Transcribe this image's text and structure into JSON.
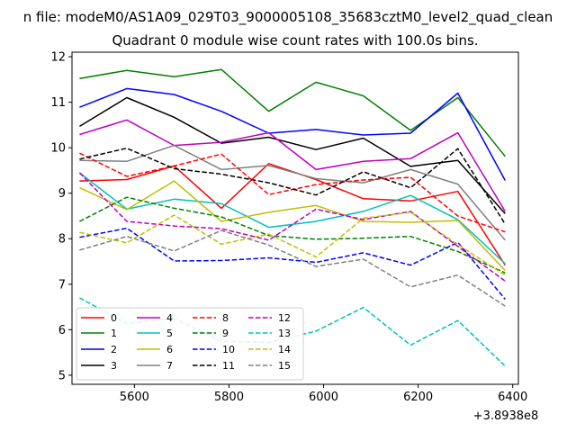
{
  "figure": {
    "suptitle": "n file: modeM0/AS1A09_029T03_9000005108_35683cztM0_level2_quad_clean",
    "title": "Quadrant 0 module wise count rates with 100.0s bins.",
    "x_offset_label": "+3.8938e8"
  },
  "chart_data": {
    "type": "line",
    "title": "Quadrant 0 module wise count rates with 100.0s bins.",
    "xlabel": "",
    "ylabel": "",
    "xlim": [
      5468,
      6412
    ],
    "ylim": [
      4.8,
      12.1
    ],
    "x_offset": "+3.8938e8",
    "xticks": [
      5600,
      5800,
      6000,
      6200,
      6400
    ],
    "yticks": [
      5,
      6,
      7,
      8,
      9,
      10,
      11,
      12
    ],
    "grid": false,
    "legend_position": "lower-left",
    "x": [
      5484,
      5584,
      5684,
      5784,
      5884,
      5984,
      6084,
      6184,
      6284,
      6384
    ],
    "series": [
      {
        "name": "0",
        "color": "#ff0000",
        "dash": "solid",
        "values": [
          9.27,
          9.3,
          9.6,
          8.67,
          9.65,
          9.3,
          8.88,
          8.83,
          9.04,
          7.42
        ]
      },
      {
        "name": "1",
        "color": "#008000",
        "dash": "solid",
        "values": [
          11.52,
          11.7,
          11.56,
          11.72,
          10.8,
          11.44,
          11.14,
          10.38,
          11.1,
          9.81
        ]
      },
      {
        "name": "2",
        "color": "#0000ff",
        "dash": "solid",
        "values": [
          10.89,
          11.3,
          11.17,
          10.8,
          10.32,
          10.4,
          10.28,
          10.32,
          11.2,
          9.28
        ]
      },
      {
        "name": "3",
        "color": "#000000",
        "dash": "solid",
        "values": [
          10.47,
          11.1,
          10.67,
          10.1,
          10.23,
          9.96,
          10.21,
          9.59,
          9.72,
          8.55
        ]
      },
      {
        "name": "4",
        "color": "#bf00bf",
        "dash": "solid",
        "values": [
          10.29,
          10.61,
          10.05,
          10.12,
          10.33,
          9.52,
          9.7,
          9.76,
          10.33,
          8.6
        ]
      },
      {
        "name": "5",
        "color": "#00bfbf",
        "dash": "solid",
        "values": [
          9.45,
          8.65,
          8.87,
          8.77,
          8.25,
          8.38,
          8.6,
          8.95,
          8.42,
          7.45
        ]
      },
      {
        "name": "6",
        "color": "#bfbf00",
        "dash": "solid",
        "values": [
          9.12,
          8.64,
          9.27,
          8.38,
          8.58,
          8.73,
          8.38,
          8.36,
          8.4,
          7.3
        ]
      },
      {
        "name": "7",
        "color": "#808080",
        "dash": "solid",
        "values": [
          9.72,
          9.7,
          10.05,
          9.52,
          9.61,
          9.32,
          9.23,
          9.52,
          9.2,
          7.97
        ]
      },
      {
        "name": "8",
        "color": "#ff0000",
        "dash": "dashed",
        "values": [
          9.88,
          9.37,
          9.6,
          9.86,
          8.97,
          9.19,
          9.29,
          9.35,
          8.5,
          8.15
        ]
      },
      {
        "name": "9",
        "color": "#008000",
        "dash": "dashed",
        "values": [
          8.38,
          8.91,
          8.67,
          8.48,
          8.07,
          7.99,
          8.01,
          8.05,
          7.72,
          7.25
        ]
      },
      {
        "name": "10",
        "color": "#0000ff",
        "dash": "dashed",
        "values": [
          8.03,
          8.23,
          7.51,
          7.52,
          7.58,
          7.48,
          7.69,
          7.42,
          7.92,
          6.67
        ]
      },
      {
        "name": "11",
        "color": "#000000",
        "dash": "dashed",
        "values": [
          9.75,
          9.99,
          9.54,
          9.42,
          9.23,
          8.96,
          9.47,
          9.12,
          9.98,
          8.32
        ]
      },
      {
        "name": "12",
        "color": "#bf00bf",
        "dash": "dashed",
        "values": [
          9.45,
          8.38,
          8.28,
          8.22,
          7.97,
          8.65,
          8.42,
          8.6,
          7.83,
          7.07
        ]
      },
      {
        "name": "13",
        "color": "#00bfbf",
        "dash": "dashed",
        "values": [
          6.7,
          6.14,
          6.25,
          5.75,
          5.72,
          5.97,
          6.49,
          5.66,
          6.2,
          5.2
        ]
      },
      {
        "name": "14",
        "color": "#bfbf00",
        "dash": "dashed",
        "values": [
          8.14,
          7.91,
          8.52,
          7.88,
          8.1,
          7.6,
          8.45,
          8.58,
          7.87,
          7.2
        ]
      },
      {
        "name": "15",
        "color": "#808080",
        "dash": "dashed",
        "values": [
          7.75,
          8.05,
          7.73,
          8.18,
          7.86,
          7.39,
          7.55,
          6.94,
          7.2,
          6.52
        ]
      }
    ]
  }
}
